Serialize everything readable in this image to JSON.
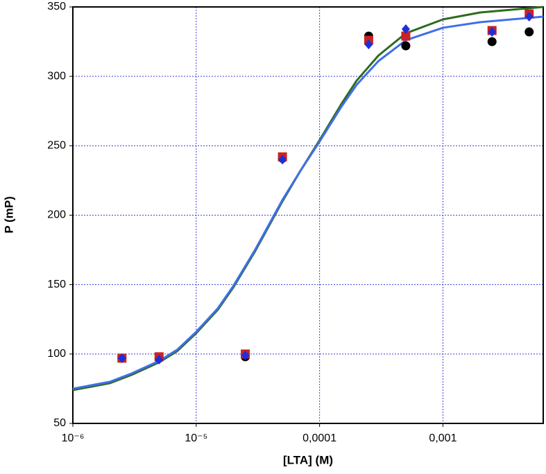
{
  "chart_data": {
    "type": "scatter",
    "x_label": "[LTA] (M)",
    "y_label": "P (mP)",
    "xscale": "log",
    "xlim": [
      1e-06,
      0.0065
    ],
    "ylim": [
      50,
      350
    ],
    "xticks": [
      {
        "value": 1e-06,
        "label": "10⁻⁶"
      },
      {
        "value": 1e-05,
        "label": "10⁻⁵"
      },
      {
        "value": 0.0001,
        "label": "0,0001"
      },
      {
        "value": 0.001,
        "label": "0,001"
      }
    ],
    "yticks": [
      50,
      100,
      150,
      200,
      250,
      300,
      350
    ],
    "grid": true,
    "grid_color": "#3a3adf",
    "series": [
      {
        "color": "#2e6b1e",
        "mode": "line",
        "x": [
          1e-06,
          2e-06,
          3e-06,
          5e-06,
          7e-06,
          1e-05,
          1.5e-05,
          2e-05,
          3e-05,
          5e-05,
          7e-05,
          0.0001,
          0.00015,
          0.0002,
          0.0003,
          0.0005,
          0.001,
          0.002,
          0.0065
        ],
        "values": [
          74,
          79,
          85,
          94,
          102,
          115,
          132,
          148,
          174,
          210,
          232,
          254,
          280,
          297,
          315,
          331,
          341,
          346,
          350
        ]
      },
      {
        "color": "#3f6fe8",
        "mode": "line",
        "x": [
          1e-06,
          2e-06,
          3e-06,
          5e-06,
          7e-06,
          1e-05,
          1.5e-05,
          2e-05,
          3e-05,
          5e-05,
          7e-05,
          0.0001,
          0.00015,
          0.0002,
          0.0003,
          0.0005,
          0.001,
          0.002,
          0.0065
        ],
        "values": [
          75,
          80,
          86,
          95,
          103,
          116,
          133,
          149,
          175,
          211,
          232,
          253,
          278,
          294,
          311,
          326,
          335,
          339,
          343
        ]
      },
      {
        "color": "#000000",
        "mode": "marker",
        "marker": "circle",
        "x": [
          2.5e-06,
          5e-06,
          2.5e-05,
          5e-05,
          0.00025,
          0.0005,
          0.0025,
          0.005
        ],
        "values": [
          97,
          97,
          98,
          241,
          329,
          322,
          325,
          332
        ]
      },
      {
        "color": "#cc2222",
        "mode": "marker",
        "marker": "square",
        "x": [
          2.5e-06,
          5e-06,
          2.5e-05,
          5e-05,
          0.00025,
          0.0005,
          0.0025,
          0.005
        ],
        "values": [
          97,
          98,
          100,
          242,
          326,
          329,
          333,
          345
        ]
      },
      {
        "color": "#1f2fd8",
        "mode": "marker",
        "marker": "diamond",
        "x": [
          2.5e-06,
          5e-06,
          2.5e-05,
          5e-05,
          0.00025,
          0.0005,
          0.0025,
          0.005
        ],
        "values": [
          97,
          96,
          99,
          240,
          323,
          334,
          332,
          343
        ]
      }
    ]
  }
}
